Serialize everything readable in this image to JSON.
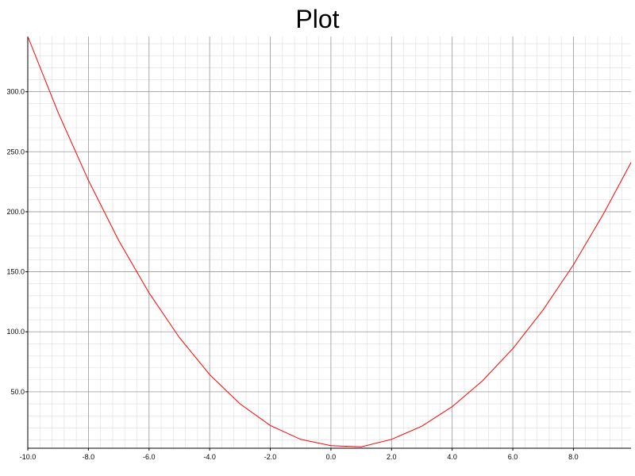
{
  "chart_data": {
    "type": "line",
    "title": "Plot",
    "xlabel": "",
    "ylabel": "",
    "xlim": [
      -10.0,
      9.9
    ],
    "ylim": [
      3.0,
      346.0
    ],
    "grid": true,
    "x_ticks": [
      "-10.0",
      "-8.0",
      "-6.0",
      "-4.0",
      "-2.0",
      "0.0",
      "2.0",
      "4.0",
      "6.0",
      "8.0"
    ],
    "y_ticks": [
      "50.0",
      "100.0",
      "150.0",
      "200.0",
      "250.0",
      "300.0"
    ],
    "colors": {
      "line": "#ff0000",
      "major_grid": "#9a9a9a",
      "minor_grid": "#dcdcdc",
      "axis": "#000000"
    },
    "series": [
      {
        "x": [
          -10,
          -9,
          -8,
          -7,
          -6,
          -5,
          -4,
          -3,
          -2,
          -1,
          0,
          1,
          2,
          3,
          4,
          5,
          6,
          7,
          8,
          9,
          9.9
        ],
        "values": [
          346.0,
          282.7,
          226.2,
          176.0,
          132.4,
          95.2,
          64.4,
          40.0,
          22.0,
          10.4,
          5.2,
          4.2,
          10.4,
          21.4,
          37.6,
          59.2,
          86.0,
          118.2,
          155.7,
          198.6,
          241.0
        ]
      }
    ]
  }
}
